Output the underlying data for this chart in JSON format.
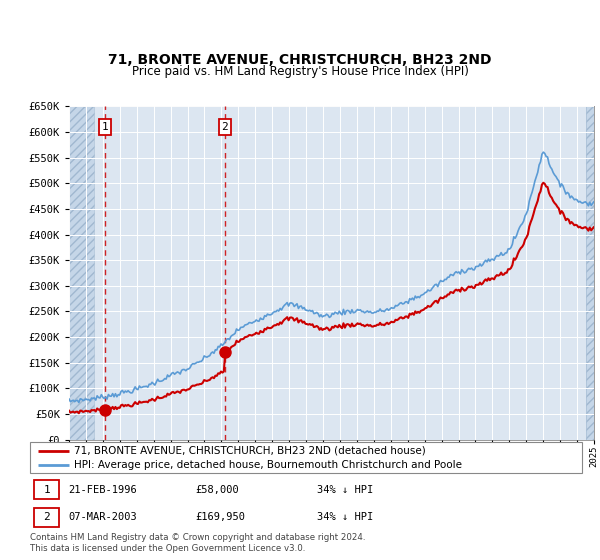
{
  "title": "71, BRONTE AVENUE, CHRISTCHURCH, BH23 2ND",
  "subtitle": "Price paid vs. HM Land Registry's House Price Index (HPI)",
  "legend_line1": "71, BRONTE AVENUE, CHRISTCHURCH, BH23 2ND (detached house)",
  "legend_line2": "HPI: Average price, detached house, Bournemouth Christchurch and Poole",
  "purchase1_date": "21-FEB-1996",
  "purchase1_price": 58000,
  "purchase2_date": "07-MAR-2003",
  "purchase2_price": 169950,
  "footer": "Contains HM Land Registry data © Crown copyright and database right 2024.\nThis data is licensed under the Open Government Licence v3.0.",
  "red_color": "#cc0000",
  "blue_color": "#5b9bd5",
  "background_color": "#dce6f1",
  "ylim": [
    0,
    650000
  ],
  "xlim_year_start": 1994,
  "xlim_year_end": 2025,
  "p1_year": 1996.12,
  "p2_year": 2003.21,
  "hpi_years": [
    1994,
    1995,
    1996,
    1997,
    1998,
    1999,
    2000,
    2001,
    2002,
    2003,
    2004,
    2005,
    2006,
    2007,
    2008,
    2009,
    2010,
    2011,
    2012,
    2013,
    2014,
    2015,
    2016,
    2017,
    2018,
    2019,
    2020,
    2021,
    2022,
    2023,
    2024,
    2025
  ],
  "hpi_vals": [
    75000,
    78000,
    83000,
    90000,
    98000,
    110000,
    125000,
    138000,
    158000,
    183000,
    215000,
    232000,
    248000,
    265000,
    255000,
    240000,
    248000,
    252000,
    248000,
    255000,
    270000,
    285000,
    308000,
    328000,
    335000,
    352000,
    370000,
    440000,
    565000,
    495000,
    465000,
    460000
  ]
}
